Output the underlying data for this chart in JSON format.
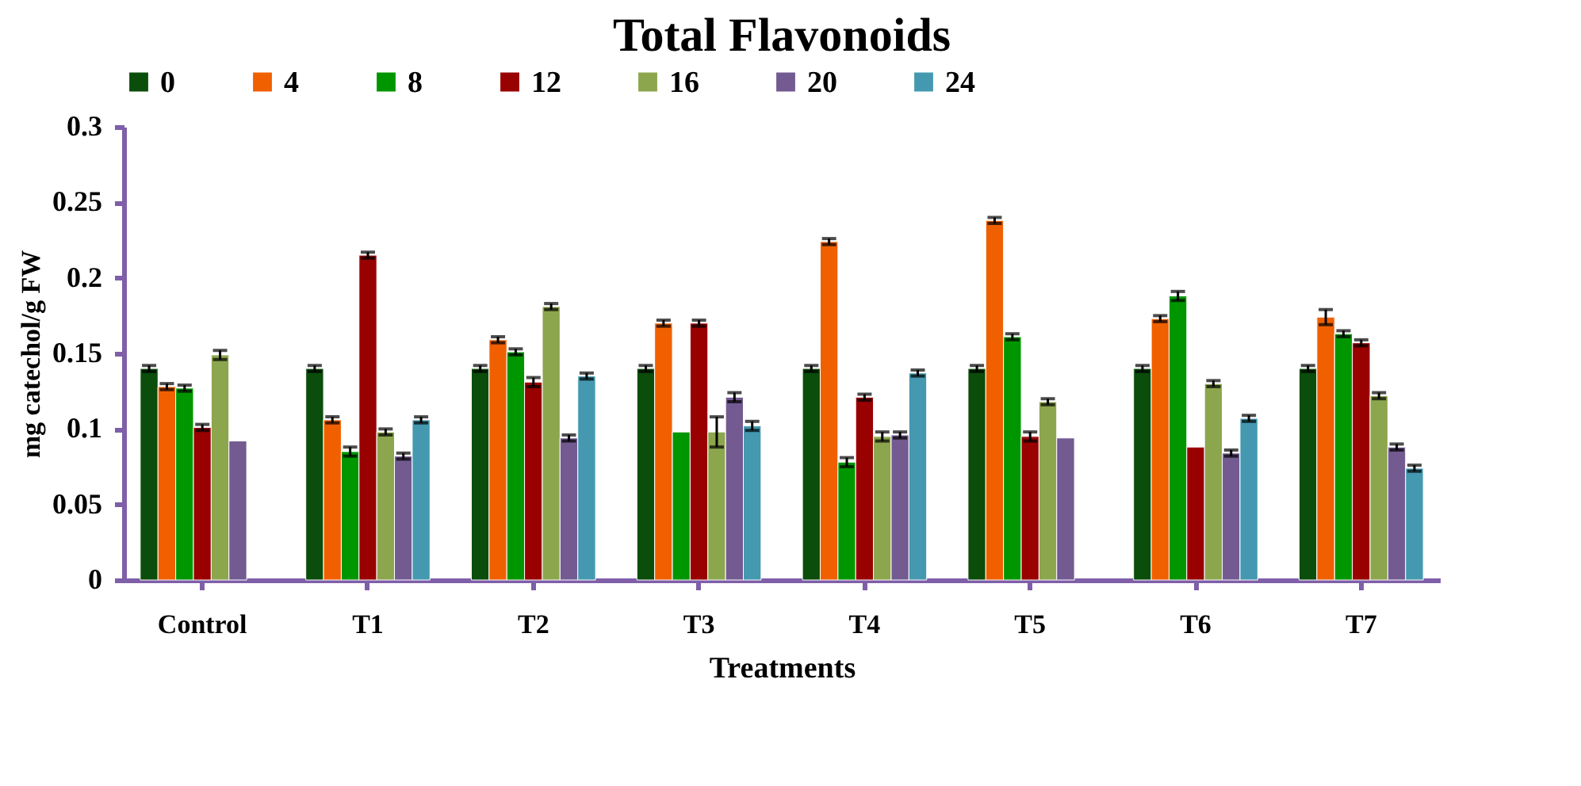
{
  "chart_data": {
    "type": "bar",
    "title": "Total Flavonoids",
    "xlabel": "Treatments",
    "ylabel": "mg catechol/g FW",
    "categories": [
      "Control",
      "T1",
      "T2",
      "T3",
      "T4",
      "T5",
      "T6",
      "T7"
    ],
    "series": [
      {
        "name": "0",
        "color": "#0b4d0b",
        "values": [
          0.14,
          0.14,
          0.14,
          0.14,
          0.14,
          0.14,
          0.14,
          0.14
        ],
        "errors": [
          0.002,
          0.002,
          0.002,
          0.002,
          0.002,
          0.002,
          0.002,
          0.002
        ]
      },
      {
        "name": "4",
        "color": "#f06000",
        "values": [
          0.128,
          0.106,
          0.159,
          0.17,
          0.224,
          0.238,
          0.173,
          0.174
        ],
        "errors": [
          0.002,
          0.002,
          0.002,
          0.002,
          0.002,
          0.002,
          0.002,
          0.005
        ]
      },
      {
        "name": "8",
        "color": "#009600",
        "values": [
          0.127,
          0.085,
          0.151,
          0.098,
          0.078,
          0.161,
          0.188,
          0.163
        ],
        "errors": [
          0.002,
          0.003,
          0.002,
          null,
          0.003,
          0.002,
          0.003,
          0.002
        ]
      },
      {
        "name": "12",
        "color": "#990000",
        "values": [
          0.101,
          0.215,
          0.131,
          0.17,
          0.121,
          0.095,
          0.088,
          0.157
        ],
        "errors": [
          0.002,
          0.002,
          0.003,
          0.002,
          0.002,
          0.003,
          null,
          0.002
        ]
      },
      {
        "name": "16",
        "color": "#8ca64e",
        "values": [
          0.149,
          0.098,
          0.181,
          0.098,
          0.095,
          0.118,
          0.13,
          0.122
        ],
        "errors": [
          0.003,
          0.002,
          0.002,
          0.01,
          0.003,
          0.002,
          0.002,
          0.002
        ]
      },
      {
        "name": "20",
        "color": "#735a91",
        "values": [
          0.092,
          0.082,
          0.094,
          0.121,
          0.096,
          0.094,
          0.084,
          0.088
        ],
        "errors": [
          null,
          0.002,
          0.002,
          0.003,
          0.002,
          null,
          0.002,
          0.002
        ]
      },
      {
        "name": "24",
        "color": "#4499b0",
        "values": [
          null,
          0.106,
          0.135,
          0.102,
          0.137,
          null,
          0.107,
          0.074
        ],
        "errors": [
          null,
          0.002,
          0.002,
          0.003,
          0.002,
          null,
          0.002,
          0.002
        ]
      }
    ],
    "ylim": [
      0,
      0.3
    ],
    "yticks": [
      0,
      0.05,
      0.1,
      0.15,
      0.2,
      0.25,
      0.3
    ],
    "grid": false,
    "legend": "top"
  }
}
